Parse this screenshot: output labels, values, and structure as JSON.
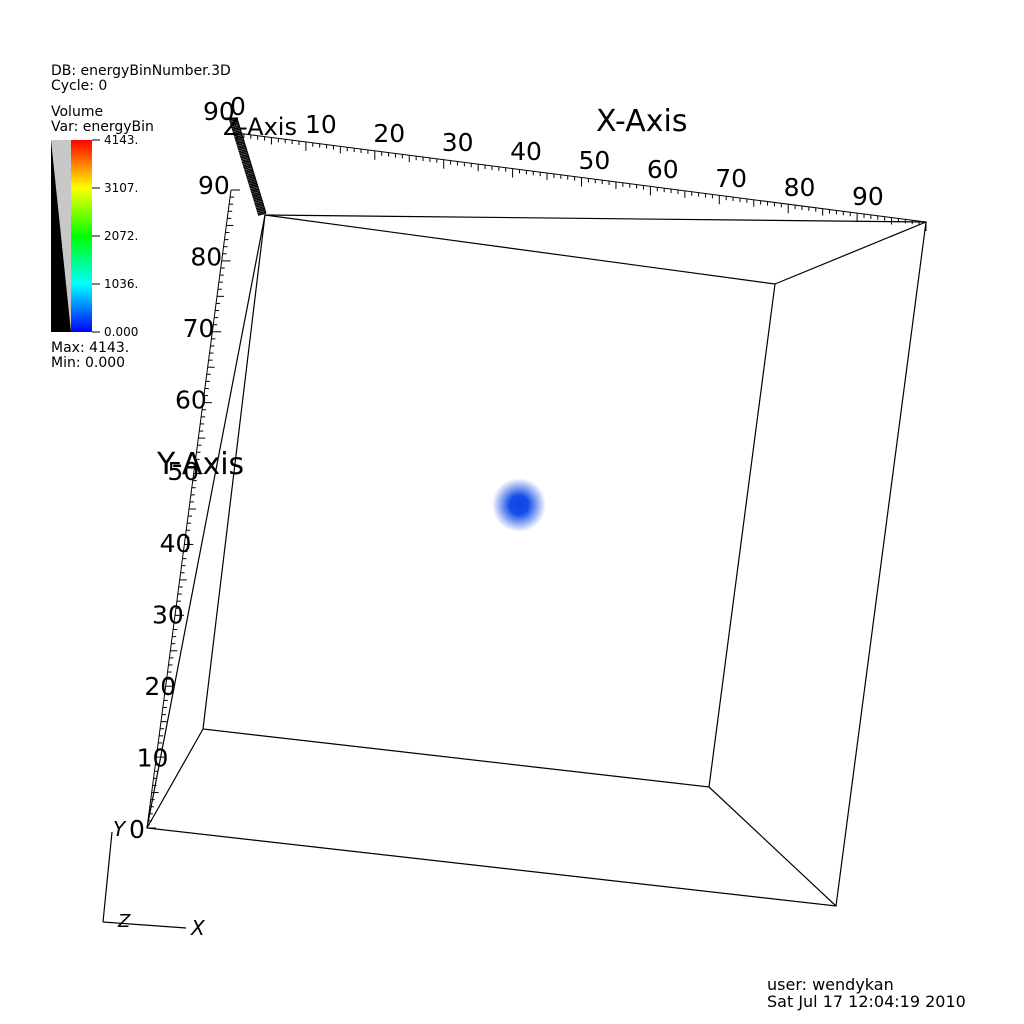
{
  "header": {
    "db": "DB: energyBinNumber.3D",
    "cycle": "Cycle: 0"
  },
  "legend": {
    "title": "Volume",
    "var": "Var: energyBin",
    "ticks": [
      "4143.",
      "3107.",
      "2072.",
      "1036.",
      "0.000"
    ],
    "max": "Max:  4143.",
    "min": "Min:  0.000",
    "colors": [
      "#ff0000",
      "#ffff00",
      "#00ff00",
      "#00ffff",
      "#0000ff"
    ]
  },
  "axes": {
    "x_title": "X-Axis",
    "y_title": "Y-Axis",
    "z_title": "Z-Axis",
    "x_ticks": [
      "10",
      "20",
      "30",
      "40",
      "50",
      "60",
      "70",
      "80",
      "90"
    ],
    "y_ticks": [
      "0",
      "10",
      "20",
      "30",
      "40",
      "50",
      "60",
      "70",
      "80",
      "90"
    ],
    "z_ticks": [
      "0",
      "90"
    ],
    "triad": {
      "y": "Y",
      "z": "Z",
      "x": "X"
    }
  },
  "volume": {
    "blob_color": "#0a45e6"
  },
  "footer": {
    "user": "user: wendykan",
    "date": "Sat Jul 17 12:04:19 2010"
  }
}
